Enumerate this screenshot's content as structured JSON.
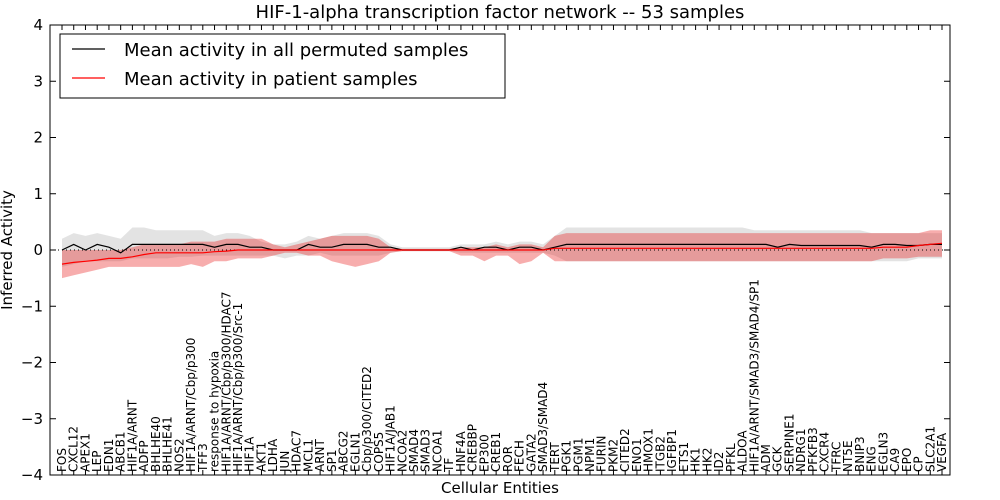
{
  "chart_data": {
    "type": "line",
    "title": "HIF-1-alpha transcription factor network -- 53 samples",
    "xlabel": "Cellular Entities",
    "ylabel": "Inferred Activity",
    "ylim": [
      -4,
      4
    ],
    "yticks": [
      -4,
      -3,
      -2,
      -1,
      0,
      1,
      2,
      3,
      4
    ],
    "ytick_labels": [
      "−4",
      "−3",
      "−2",
      "−1",
      "0",
      "1",
      "2",
      "3",
      "4"
    ],
    "legend": {
      "placement": "top-left"
    },
    "zero_line": {
      "value": 0,
      "style": "dotted"
    },
    "categories": [
      "FOS",
      "CXCL12",
      "APEX1",
      "LEP",
      "EDN1",
      "ABCB1",
      "HIF1A/ARNT",
      "ADFP",
      "BHLHE40",
      "BHLHE41",
      "NOS2",
      "HIF1A/ARNT/Cbp/p300",
      "TFF3",
      "response to hypoxia",
      "HIF1A/ARNT/Cbp/p300/HDAC7",
      "HIF1A/ARNT/Cbp/p300/Src-1",
      "HIF1A",
      "AKT1",
      "LDHA",
      "JUN",
      "HDAC7",
      "MCL1",
      "ARNT",
      "SP1",
      "ABCG2",
      "EGLN1",
      "Cbp/p300/CITED2",
      "COPS5",
      "HIF1A/JAB1",
      "NCOA2",
      "SMAD4",
      "SMAD3",
      "NCOA1",
      "TF",
      "HNF4A",
      "CREBBP",
      "EP300",
      "CREB1",
      "ROR",
      "FECH",
      "GATA2",
      "SMAD3/SMAD4",
      "TERT",
      "PGK1",
      "PGM1",
      "NPM1",
      "FURIN",
      "PKM2",
      "CITED2",
      "ENO1",
      "HMOX1",
      "ITGB2",
      "IGFBP1",
      "ETS1",
      "HK1",
      "HK2",
      "ID2",
      "PFKL",
      "ALDOA",
      "HIF1A/ARNT/SMAD3/SMAD4/SP1",
      "ADM",
      "GCK",
      "SERPINE1",
      "NDRG1",
      "PFKFB3",
      "CXCR4",
      "TFRC",
      "NT5E",
      "BNIP3",
      "ENG",
      "EGLN3",
      "CA9",
      "EPO",
      "CP",
      "SLC2A1",
      "VEGFA"
    ],
    "series": [
      {
        "name": "Mean activity in all permuted samples",
        "color": "#000000",
        "values": [
          0.0,
          0.1,
          0.0,
          0.1,
          0.05,
          -0.05,
          0.1,
          0.1,
          0.1,
          0.1,
          0.1,
          0.1,
          0.1,
          0.05,
          0.1,
          0.1,
          0.05,
          0.05,
          0.0,
          0.0,
          0.0,
          0.1,
          0.05,
          0.05,
          0.1,
          0.1,
          0.1,
          0.05,
          0.05,
          0.0,
          0.0,
          0.0,
          0.0,
          0.0,
          0.05,
          0.0,
          0.05,
          0.05,
          0.0,
          0.05,
          0.05,
          0.0,
          0.05,
          0.1,
          0.1,
          0.1,
          0.1,
          0.1,
          0.1,
          0.1,
          0.1,
          0.1,
          0.1,
          0.1,
          0.1,
          0.1,
          0.1,
          0.1,
          0.1,
          0.1,
          0.1,
          0.05,
          0.1,
          0.08,
          0.08,
          0.08,
          0.08,
          0.08,
          0.08,
          0.05,
          0.1,
          0.1,
          0.08,
          0.08,
          0.1,
          0.1
        ],
        "band_lower": [
          -0.3,
          -0.25,
          -0.2,
          -0.2,
          -0.2,
          -0.2,
          -0.15,
          -0.15,
          -0.15,
          -0.15,
          -0.12,
          -0.12,
          -0.1,
          -0.1,
          -0.1,
          -0.1,
          -0.1,
          -0.1,
          -0.1,
          -0.15,
          -0.1,
          -0.1,
          -0.05,
          -0.1,
          -0.1,
          -0.1,
          -0.1,
          -0.1,
          -0.05,
          -0.02,
          -0.02,
          -0.02,
          -0.02,
          -0.02,
          -0.05,
          -0.05,
          -0.05,
          -0.05,
          -0.05,
          -0.05,
          -0.05,
          -0.05,
          -0.1,
          -0.2,
          -0.2,
          -0.2,
          -0.2,
          -0.2,
          -0.2,
          -0.2,
          -0.2,
          -0.2,
          -0.2,
          -0.2,
          -0.2,
          -0.2,
          -0.2,
          -0.2,
          -0.2,
          -0.2,
          -0.2,
          -0.2,
          -0.2,
          -0.2,
          -0.2,
          -0.2,
          -0.2,
          -0.2,
          -0.2,
          -0.2,
          -0.2,
          -0.2,
          -0.2,
          -0.15,
          -0.15,
          -0.15
        ],
        "band_upper": [
          0.2,
          0.3,
          0.25,
          0.3,
          0.25,
          0.2,
          0.4,
          0.4,
          0.35,
          0.35,
          0.35,
          0.35,
          0.35,
          0.25,
          0.3,
          0.3,
          0.25,
          0.15,
          0.1,
          0.1,
          0.15,
          0.25,
          0.2,
          0.25,
          0.3,
          0.3,
          0.3,
          0.25,
          0.1,
          0.05,
          0.05,
          0.05,
          0.05,
          0.05,
          0.1,
          0.1,
          0.1,
          0.15,
          0.1,
          0.15,
          0.15,
          0.1,
          0.25,
          0.4,
          0.4,
          0.4,
          0.4,
          0.4,
          0.4,
          0.4,
          0.4,
          0.4,
          0.4,
          0.4,
          0.4,
          0.4,
          0.4,
          0.4,
          0.4,
          0.35,
          0.35,
          0.35,
          0.35,
          0.35,
          0.35,
          0.35,
          0.35,
          0.35,
          0.35,
          0.3,
          0.3,
          0.3,
          0.3,
          0.3,
          0.3,
          0.3
        ]
      },
      {
        "name": "Mean activity in patient samples",
        "color": "#ff0000",
        "values": [
          -0.25,
          -0.22,
          -0.2,
          -0.18,
          -0.15,
          -0.15,
          -0.12,
          -0.08,
          -0.05,
          -0.05,
          -0.05,
          -0.05,
          -0.05,
          -0.03,
          -0.02,
          0.0,
          0.0,
          0.0,
          0.0,
          0.0,
          0.0,
          0.0,
          0.0,
          0.0,
          0.0,
          0.0,
          0.0,
          0.0,
          0.0,
          0.0,
          0.0,
          0.0,
          0.0,
          0.0,
          0.0,
          0.0,
          0.0,
          0.0,
          0.0,
          0.0,
          0.0,
          0.0,
          0.03,
          0.03,
          0.03,
          0.03,
          0.03,
          0.03,
          0.03,
          0.03,
          0.03,
          0.03,
          0.03,
          0.03,
          0.03,
          0.03,
          0.03,
          0.03,
          0.03,
          0.03,
          0.03,
          0.03,
          0.03,
          0.03,
          0.03,
          0.03,
          0.03,
          0.03,
          0.03,
          0.03,
          0.05,
          0.05,
          0.05,
          0.08,
          0.1,
          0.12
        ],
        "band_lower": [
          -0.5,
          -0.45,
          -0.4,
          -0.35,
          -0.3,
          -0.3,
          -0.3,
          -0.3,
          -0.3,
          -0.3,
          -0.3,
          -0.25,
          -0.3,
          -0.2,
          -0.2,
          -0.15,
          -0.15,
          -0.15,
          -0.1,
          -0.05,
          -0.05,
          -0.1,
          -0.1,
          -0.2,
          -0.25,
          -0.3,
          -0.25,
          -0.2,
          -0.05,
          -0.02,
          -0.02,
          -0.02,
          -0.02,
          -0.02,
          -0.1,
          -0.1,
          -0.2,
          -0.1,
          -0.1,
          -0.25,
          -0.2,
          -0.05,
          -0.2,
          -0.2,
          -0.2,
          -0.2,
          -0.2,
          -0.2,
          -0.2,
          -0.2,
          -0.2,
          -0.2,
          -0.2,
          -0.2,
          -0.2,
          -0.2,
          -0.2,
          -0.2,
          -0.2,
          -0.2,
          -0.2,
          -0.2,
          -0.2,
          -0.2,
          -0.2,
          -0.2,
          -0.2,
          -0.2,
          -0.2,
          -0.2,
          -0.15,
          -0.15,
          -0.15,
          -0.12,
          -0.12,
          -0.12
        ],
        "band_upper": [
          0.0,
          0.0,
          0.0,
          0.0,
          0.0,
          0.0,
          0.05,
          0.1,
          0.1,
          0.1,
          0.1,
          0.15,
          0.15,
          0.15,
          0.2,
          0.2,
          0.2,
          0.2,
          0.1,
          0.05,
          0.1,
          0.15,
          0.2,
          0.25,
          0.25,
          0.25,
          0.25,
          0.2,
          0.05,
          0.02,
          0.02,
          0.02,
          0.02,
          0.02,
          0.05,
          0.05,
          0.05,
          0.1,
          0.05,
          0.1,
          0.1,
          0.05,
          0.25,
          0.3,
          0.3,
          0.3,
          0.3,
          0.3,
          0.3,
          0.3,
          0.3,
          0.3,
          0.3,
          0.3,
          0.3,
          0.3,
          0.3,
          0.3,
          0.3,
          0.3,
          0.3,
          0.3,
          0.3,
          0.3,
          0.3,
          0.3,
          0.3,
          0.3,
          0.3,
          0.3,
          0.3,
          0.3,
          0.3,
          0.3,
          0.35,
          0.35
        ]
      }
    ]
  }
}
